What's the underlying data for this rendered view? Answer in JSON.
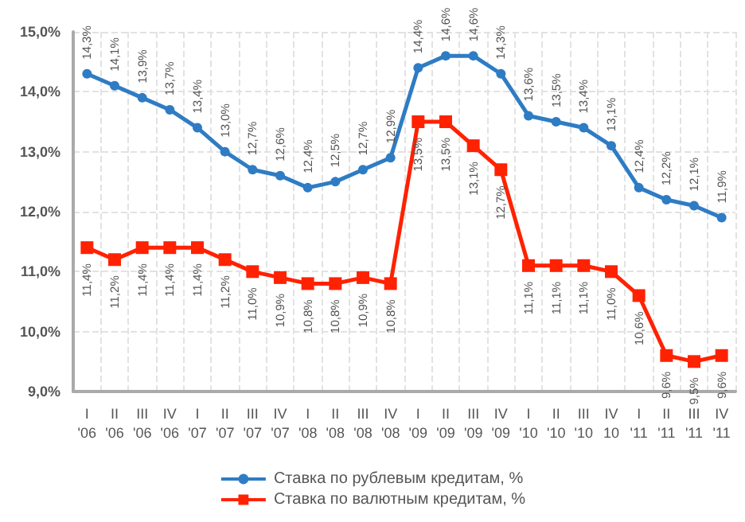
{
  "chart_data": {
    "type": "line",
    "categories": [
      "I\n'06",
      "II\n'06",
      "III\n'06",
      "IV\n'06",
      "I\n'07",
      "II\n'07",
      "III\n'07",
      "IV\n'07",
      "I\n'08",
      "II\n'08",
      "III\n'08",
      "IV\n'08",
      "I\n'09",
      "II\n'09",
      "III\n'09",
      "IV\n'09",
      "I\n'10",
      "II\n'10",
      "III\n'10",
      "IV\n10",
      "I\n'11",
      "II\n'11",
      "III\n'11",
      "IV\n'11"
    ],
    "series": [
      {
        "name": "Ставка по рублевым кредитам, %",
        "color": "#2e7cc4",
        "marker": "circle",
        "values": [
          14.3,
          14.1,
          13.9,
          13.7,
          13.4,
          13.0,
          12.7,
          12.6,
          12.4,
          12.5,
          12.7,
          12.9,
          14.4,
          14.6,
          14.6,
          14.3,
          13.6,
          13.5,
          13.4,
          13.1,
          12.4,
          12.2,
          12.1,
          11.9
        ],
        "value_labels": [
          "14,3%",
          "14,1%",
          "13,9%",
          "13,7%",
          "13,4%",
          "13,0%",
          "12,7%",
          "12,6%",
          "12,4%",
          "12,5%",
          "12,7%",
          "12,9%",
          "14,4%",
          "14,6%",
          "14,6%",
          "14,3%",
          "13,6%",
          "13,5%",
          "13,4%",
          "13,1%",
          "12,4%",
          "12,2%",
          "12,1%",
          "11,9%"
        ]
      },
      {
        "name": "Ставка по валютным кредитам, %",
        "color": "#ff2200",
        "marker": "square",
        "values": [
          11.4,
          11.2,
          11.4,
          11.4,
          11.4,
          11.2,
          11.0,
          10.9,
          10.8,
          10.8,
          10.9,
          10.8,
          13.5,
          13.5,
          13.1,
          12.7,
          11.1,
          11.1,
          11.1,
          11.0,
          10.6,
          9.6,
          9.5,
          9.6
        ],
        "value_labels": [
          "11,4%",
          "11,2%",
          "11,4%",
          "11,4%",
          "11,4%",
          "11,2%",
          "11,0%",
          "10,9%",
          "10,8%",
          "10,8%",
          "10,9%",
          "10,8%",
          "13,5%",
          "13,5%",
          "13,1%",
          "12,7%",
          "11,1%",
          "11,1%",
          "11,1%",
          "11,0%",
          "10,6%",
          "9,6%",
          "9,5%",
          "9,6%"
        ]
      }
    ],
    "ylim": [
      9,
      15
    ],
    "yticks": [
      {
        "value": 9,
        "label": "9,0%"
      },
      {
        "value": 10,
        "label": "10,0%"
      },
      {
        "value": 11,
        "label": "11,0%"
      },
      {
        "value": 12,
        "label": "12,0%"
      },
      {
        "value": 13,
        "label": "13,0%"
      },
      {
        "value": 14,
        "label": "14,0%"
      },
      {
        "value": 15,
        "label": "15,0%"
      }
    ],
    "grid": true,
    "legend": "bottom"
  }
}
